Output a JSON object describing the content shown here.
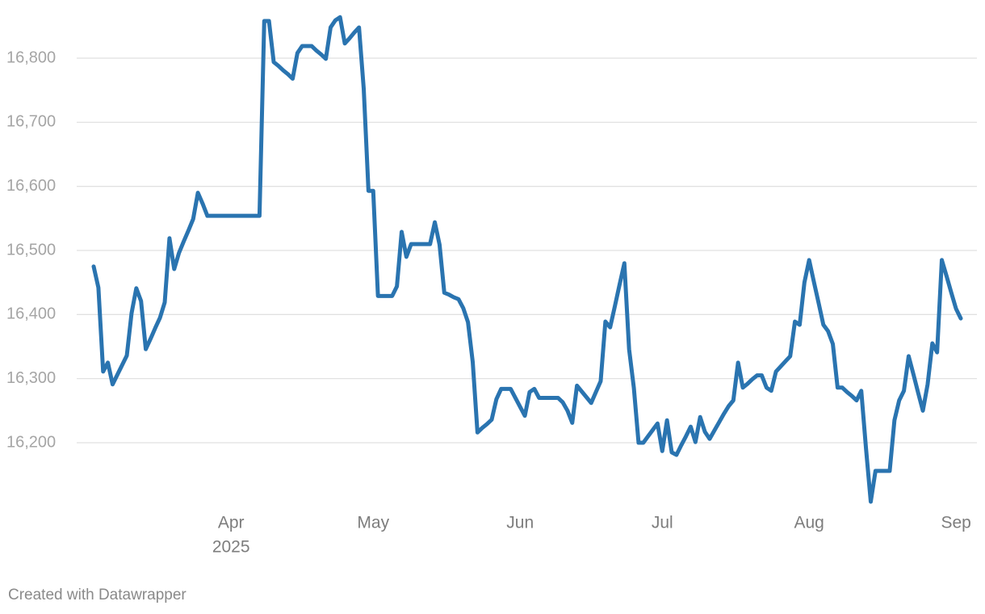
{
  "chart_data": {
    "type": "line",
    "categories": [
      null,
      null,
      null,
      null,
      null,
      null,
      null,
      null,
      null,
      null,
      null,
      null,
      null,
      null,
      null,
      null,
      null,
      null,
      null,
      null,
      null,
      null,
      null,
      null,
      null,
      null,
      null,
      null,
      null,
      "Apr",
      null,
      null,
      null,
      null,
      null,
      null,
      null,
      null,
      null,
      null,
      null,
      null,
      null,
      null,
      null,
      null,
      null,
      null,
      null,
      null,
      null,
      null,
      null,
      null,
      null,
      null,
      null,
      null,
      null,
      "May",
      null,
      null,
      null,
      null,
      null,
      null,
      null,
      null,
      null,
      null,
      null,
      null,
      null,
      null,
      null,
      null,
      null,
      null,
      null,
      null,
      null,
      null,
      null,
      null,
      null,
      null,
      null,
      null,
      null,
      null,
      "Jun",
      null,
      null,
      null,
      null,
      null,
      null,
      null,
      null,
      null,
      null,
      null,
      null,
      null,
      null,
      null,
      null,
      null,
      null,
      null,
      null,
      null,
      null,
      null,
      null,
      null,
      null,
      null,
      null,
      null,
      "Jul",
      null,
      null,
      null,
      null,
      null,
      null,
      null,
      null,
      null,
      null,
      null,
      null,
      null,
      null,
      null,
      null,
      null,
      null,
      null,
      null,
      null,
      null,
      null,
      null,
      null,
      null,
      null,
      null,
      null,
      null,
      "Aug",
      null,
      null,
      null,
      null,
      null,
      null,
      null,
      null,
      null,
      null,
      null,
      null,
      null,
      null,
      null,
      null,
      null,
      null,
      null,
      null,
      null,
      null,
      null,
      null,
      null,
      null,
      null,
      null,
      null,
      null,
      "Sep",
      null
    ],
    "year": "2025",
    "values": [
      16475,
      16442,
      16311,
      16325,
      16291,
      16306,
      16321,
      16336,
      16402,
      16441,
      16421,
      16346,
      16362,
      16379,
      16395,
      16419,
      16519,
      16471,
      16496,
      16514,
      16531,
      16549,
      16590,
      16573,
      16554,
      16554,
      16554,
      16554,
      16554,
      16554,
      16554,
      16554,
      16554,
      16554,
      16554,
      16554,
      16858,
      16858,
      16794,
      16788,
      16781,
      16775,
      16768,
      16808,
      16819,
      16819,
      16819,
      16812,
      16806,
      16799,
      16848,
      16859,
      16864,
      16823,
      16831,
      16840,
      16848,
      16752,
      16593,
      16593,
      16429,
      16429,
      16429,
      16429,
      16444,
      16529,
      16490,
      16510,
      16510,
      16510,
      16510,
      16510,
      16544,
      16509,
      16434,
      16431,
      16427,
      16424,
      16410,
      16388,
      16326,
      16216,
      16223,
      16229,
      16236,
      16268,
      16284,
      16284,
      16284,
      16270,
      16256,
      16242,
      16279,
      16284,
      16270,
      16270,
      16270,
      16270,
      16270,
      16263,
      16250,
      16231,
      16289,
      16280,
      16271,
      16262,
      16279,
      16296,
      16389,
      16380,
      16413,
      16447,
      16480,
      16346,
      16286,
      16200,
      16200,
      16210,
      16220,
      16230,
      16187,
      16235,
      16185,
      16181,
      16196,
      16210,
      16225,
      16201,
      16240,
      16217,
      16206,
      16219,
      16232,
      16245,
      16257,
      16266,
      16325,
      16286,
      16292,
      16299,
      16305,
      16305,
      16286,
      16281,
      16311,
      16319,
      16327,
      16335,
      16389,
      16384,
      16450,
      16485,
      16451,
      16418,
      16384,
      16374,
      16354,
      16286,
      16286,
      16279,
      16273,
      16266,
      16281,
      16191,
      16108,
      16156,
      16156,
      16156,
      16156,
      16235,
      16266,
      16281,
      16335,
      16307,
      16278,
      16250,
      16291,
      16355,
      16341,
      16485,
      16460,
      16434,
      16409,
      16394
    ],
    "color": "#2a74b0",
    "ylim": [
      16100,
      16870
    ],
    "yticks": [
      {
        "value": 16200,
        "label": "16,200"
      },
      {
        "value": 16300,
        "label": "16,300"
      },
      {
        "value": 16400,
        "label": "16,400"
      },
      {
        "value": 16500,
        "label": "16,500"
      },
      {
        "value": 16600,
        "label": "16,600"
      },
      {
        "value": 16700,
        "label": "16,700"
      },
      {
        "value": 16800,
        "label": "16,800"
      }
    ],
    "grid": true,
    "credit": "Created with Datawrapper"
  }
}
